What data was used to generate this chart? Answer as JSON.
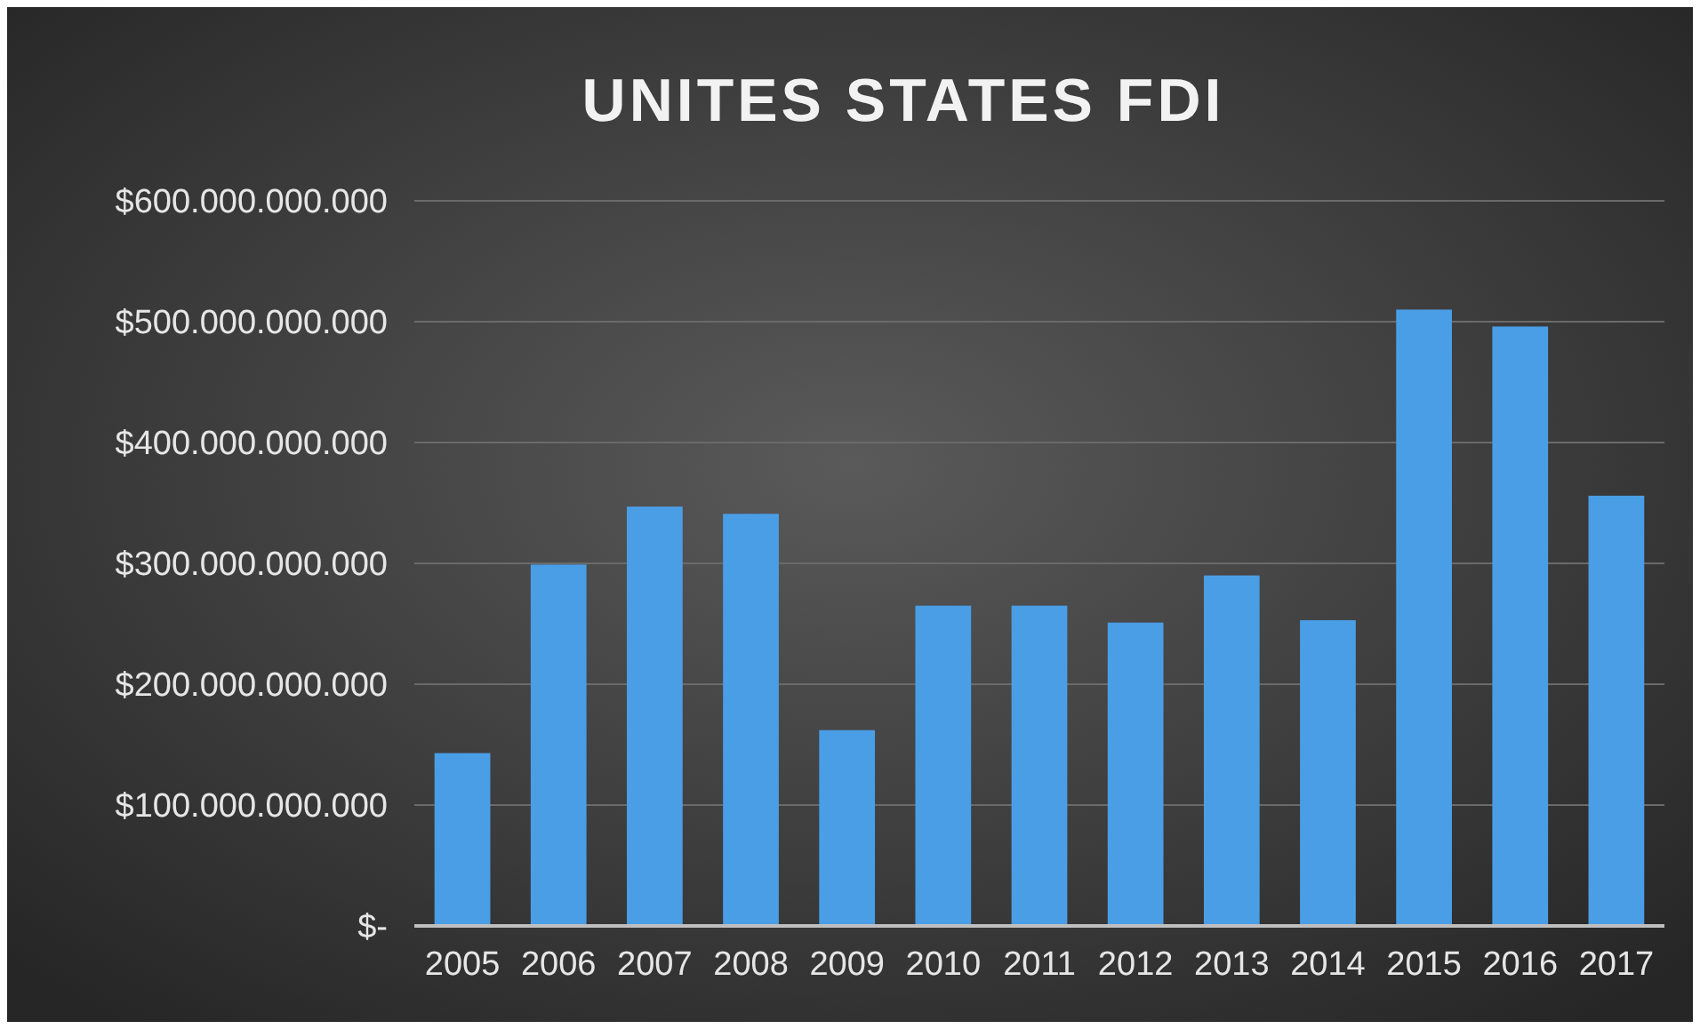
{
  "chart_data": {
    "type": "bar",
    "title": "UNITES STATES FDI",
    "categories": [
      "2005",
      "2006",
      "2007",
      "2008",
      "2009",
      "2010",
      "2011",
      "2012",
      "2013",
      "2014",
      "2015",
      "2016",
      "2017"
    ],
    "values": [
      143000000000,
      299000000000,
      347000000000,
      341000000000,
      162000000000,
      265000000000,
      265000000000,
      251000000000,
      290000000000,
      253000000000,
      510000000000,
      496000000000,
      356000000000
    ],
    "color": "#4a9ee6",
    "ylim": [
      0,
      600000000000
    ],
    "yticks": [
      {
        "value": 0,
        "label": "$-"
      },
      {
        "value": 100000000000,
        "label": "$100.000.000.000"
      },
      {
        "value": 200000000000,
        "label": "$200.000.000.000"
      },
      {
        "value": 300000000000,
        "label": "$300.000.000.000"
      },
      {
        "value": 400000000000,
        "label": "$400.000.000.000"
      },
      {
        "value": 500000000000,
        "label": "$500.000.000.000"
      },
      {
        "value": 600000000000,
        "label": "$600.000.000.000"
      }
    ],
    "grid": "y"
  }
}
